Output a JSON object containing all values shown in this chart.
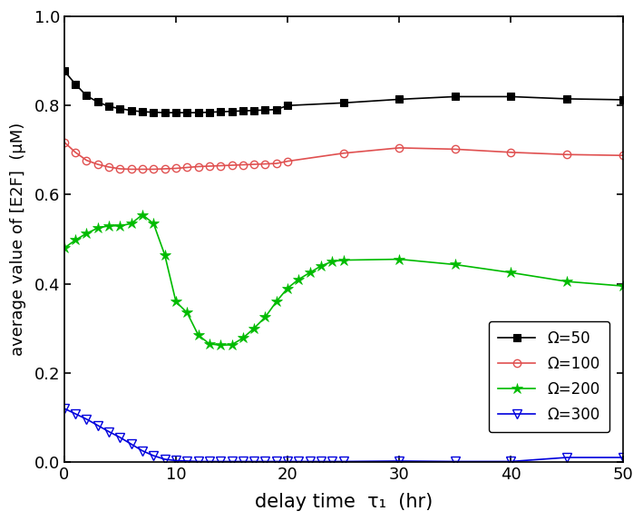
{
  "omega50_x": [
    0,
    1,
    2,
    3,
    4,
    5,
    6,
    7,
    8,
    9,
    10,
    11,
    12,
    13,
    14,
    15,
    16,
    17,
    18,
    19,
    20,
    25,
    30,
    35,
    40,
    45,
    50
  ],
  "omega50_y": [
    0.878,
    0.848,
    0.822,
    0.808,
    0.798,
    0.793,
    0.789,
    0.786,
    0.785,
    0.784,
    0.784,
    0.784,
    0.784,
    0.785,
    0.786,
    0.787,
    0.788,
    0.789,
    0.79,
    0.791,
    0.8,
    0.806,
    0.814,
    0.82,
    0.82,
    0.815,
    0.813
  ],
  "omega100_x": [
    0,
    1,
    2,
    3,
    4,
    5,
    6,
    7,
    8,
    9,
    10,
    11,
    12,
    13,
    14,
    15,
    16,
    17,
    18,
    19,
    20,
    25,
    30,
    35,
    40,
    45,
    50
  ],
  "omega100_y": [
    0.718,
    0.695,
    0.677,
    0.668,
    0.662,
    0.658,
    0.657,
    0.657,
    0.657,
    0.658,
    0.659,
    0.661,
    0.663,
    0.664,
    0.665,
    0.666,
    0.667,
    0.668,
    0.669,
    0.67,
    0.675,
    0.693,
    0.705,
    0.702,
    0.695,
    0.69,
    0.688
  ],
  "omega200_x": [
    0,
    1,
    2,
    3,
    4,
    5,
    6,
    7,
    8,
    9,
    10,
    11,
    12,
    13,
    14,
    15,
    16,
    17,
    18,
    19,
    20,
    21,
    22,
    23,
    24,
    25,
    30,
    35,
    40,
    45,
    50
  ],
  "omega200_y": [
    0.48,
    0.498,
    0.513,
    0.525,
    0.53,
    0.53,
    0.535,
    0.555,
    0.535,
    0.465,
    0.36,
    0.335,
    0.285,
    0.265,
    0.262,
    0.263,
    0.278,
    0.3,
    0.325,
    0.36,
    0.39,
    0.41,
    0.425,
    0.44,
    0.45,
    0.453,
    0.455,
    0.443,
    0.425,
    0.405,
    0.395
  ],
  "omega300_x": [
    0,
    1,
    2,
    3,
    4,
    5,
    6,
    7,
    8,
    9,
    10,
    11,
    12,
    13,
    14,
    15,
    16,
    17,
    18,
    19,
    20,
    21,
    22,
    23,
    24,
    25,
    30,
    35,
    40,
    45,
    50
  ],
  "omega300_y": [
    0.12,
    0.108,
    0.096,
    0.082,
    0.068,
    0.055,
    0.04,
    0.025,
    0.014,
    0.006,
    0.003,
    0.002,
    0.001,
    0.001,
    0.001,
    0.001,
    0.001,
    0.001,
    0.001,
    0.001,
    0.001,
    0.001,
    0.001,
    0.001,
    0.001,
    0.001,
    0.002,
    0.001,
    0.001,
    0.01,
    0.01
  ],
  "omega50_color": "#000000",
  "omega100_color": "#e05050",
  "omega200_color": "#00bb00",
  "omega300_color": "#0000dd",
  "ylabel": "average value of [E2F]  (μM)",
  "xlabel": "delay time  τ₁  (hr)",
  "xlim": [
    0,
    50
  ],
  "ylim": [
    0,
    1.0
  ],
  "yticks": [
    0.0,
    0.2,
    0.4,
    0.6,
    0.8,
    1.0
  ],
  "xticks": [
    0,
    10,
    20,
    30,
    40,
    50
  ],
  "legend_labels": [
    "Ω=50",
    "Ω=100",
    "Ω=200",
    "Ω=300"
  ],
  "background_color": "#ffffff"
}
